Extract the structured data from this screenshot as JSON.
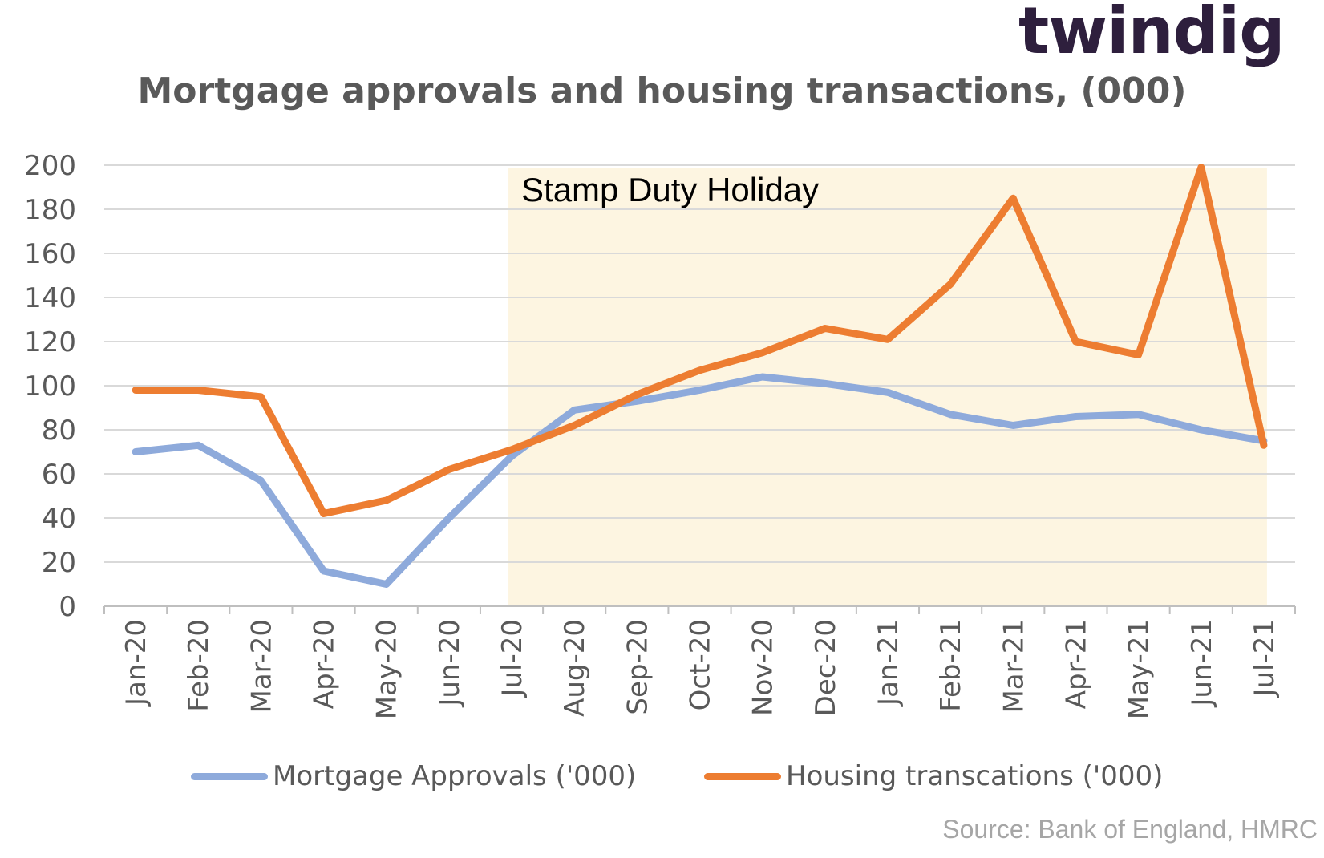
{
  "logo": {
    "text": "twindig",
    "accent_color": "#f39c3a"
  },
  "chart_data": {
    "type": "line",
    "title": "Mortgage approvals and housing transactions, (000)",
    "categories": [
      "Jan-20",
      "Feb-20",
      "Mar-20",
      "Apr-20",
      "May-20",
      "Jun-20",
      "Jul-20",
      "Aug-20",
      "Sep-20",
      "Oct-20",
      "Nov-20",
      "Dec-20",
      "Jan-21",
      "Feb-21",
      "Mar-21",
      "Apr-21",
      "May-21",
      "Jun-21",
      "Jul-21"
    ],
    "ylim": [
      0,
      200
    ],
    "yticks": [
      0,
      20,
      40,
      60,
      80,
      100,
      120,
      140,
      160,
      180,
      200
    ],
    "grid": true,
    "legend_position": "bottom",
    "series": [
      {
        "name": "Mortgage Approvals ('000)",
        "color": "#8eaadb",
        "values": [
          70,
          73,
          57,
          16,
          10,
          40,
          68,
          89,
          93,
          98,
          104,
          101,
          97,
          87,
          82,
          86,
          87,
          80,
          75
        ]
      },
      {
        "name": "Housing transcations ('000)",
        "color": "#ed7d31",
        "values": [
          98,
          98,
          95,
          42,
          48,
          62,
          71,
          82,
          96,
          107,
          115,
          126,
          121,
          146,
          185,
          120,
          114,
          199,
          73
        ]
      }
    ],
    "annotation": {
      "label": "Stamp Duty Holiday",
      "from": "Jul-20",
      "to": "Jul-21",
      "color": "#fdf5e1"
    }
  },
  "source": "Source: Bank of England, HMRC"
}
